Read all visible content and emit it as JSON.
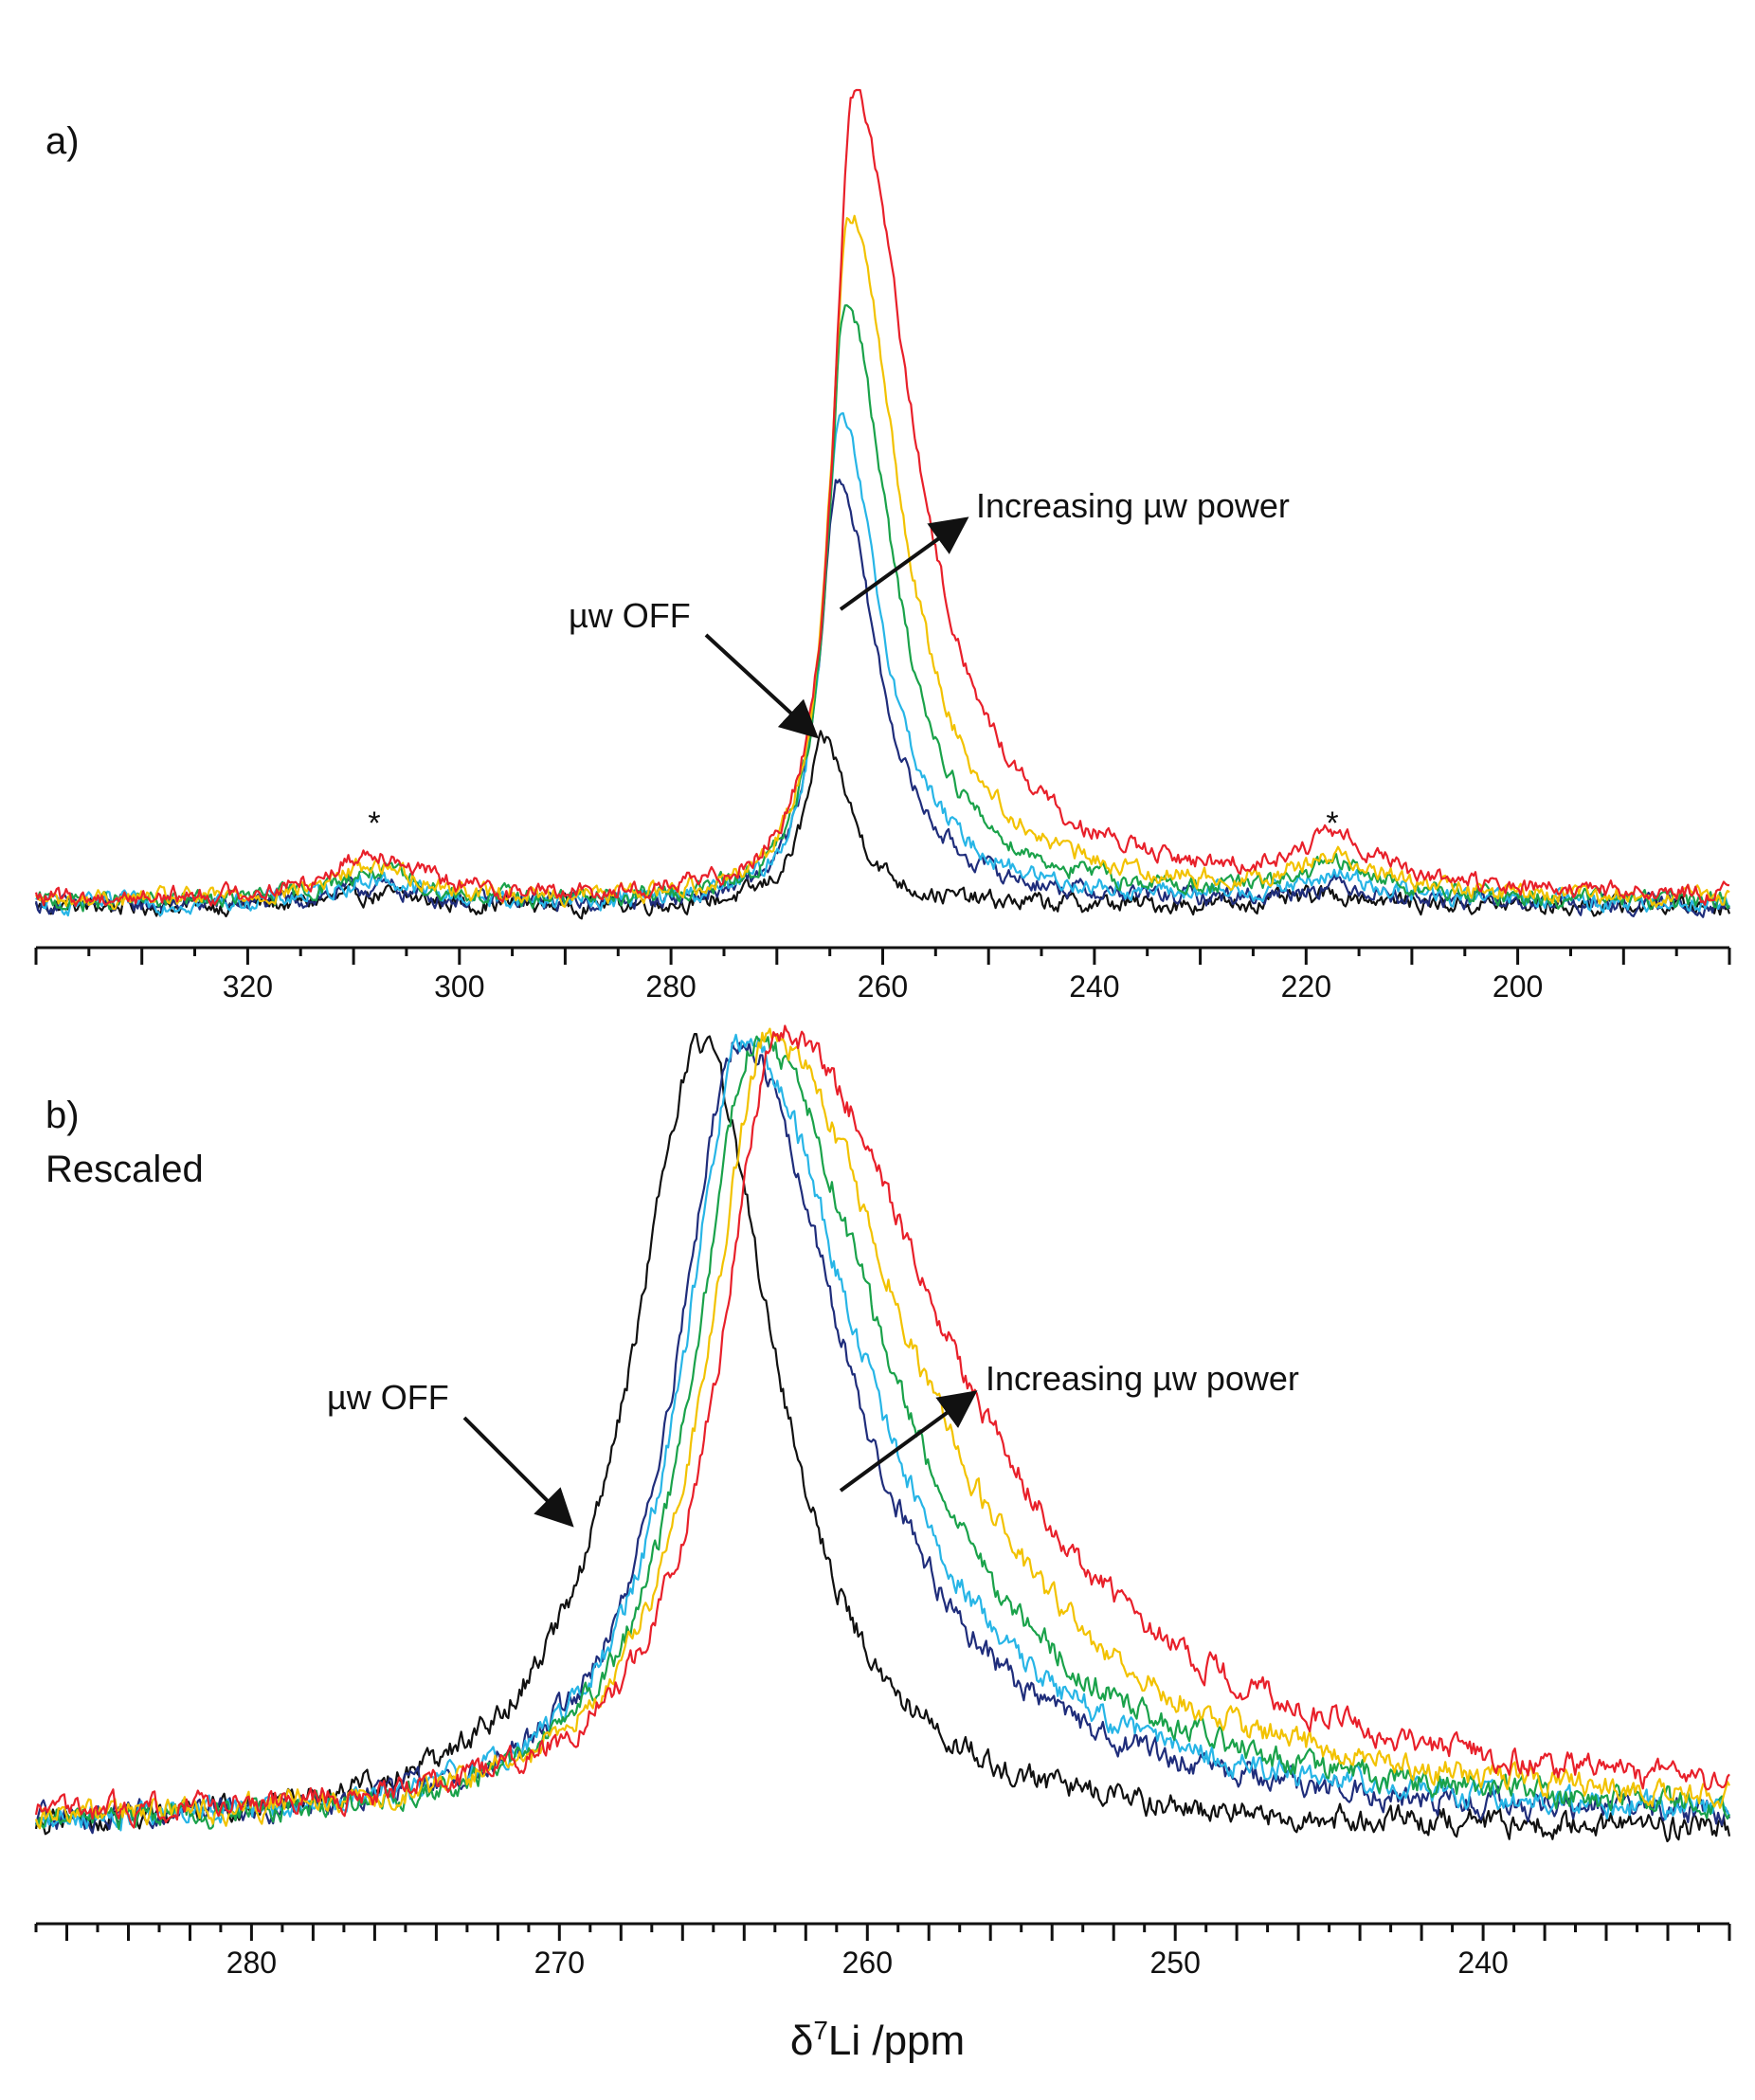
{
  "figure": {
    "xlabel_symbol": "δ",
    "xlabel_superscript": "7",
    "xlabel_rest": "Li /ppm"
  },
  "colors": {
    "axis": "#111111",
    "series": [
      "#111111",
      "#1f2d7b",
      "#27b5e6",
      "#1aa24a",
      "#f2c200",
      "#e8202a"
    ]
  },
  "chart_data": [
    {
      "type": "line",
      "panel_label": "a)",
      "xlabel": "",
      "ylabel": "",
      "xlim": [
        340,
        180
      ],
      "reversed_x": true,
      "ylim": [
        -0.05,
        1.05
      ],
      "x_ticks": [
        320,
        300,
        280,
        260,
        240,
        220,
        200
      ],
      "x_tick_labels": [
        "320",
        "300",
        "280",
        "260",
        "240",
        "220",
        "200"
      ],
      "minor_tick_step": 5,
      "grid": false,
      "annotations": [
        {
          "id": "off",
          "text": "µw OFF"
        },
        {
          "id": "inc",
          "text": "Increasing µw power"
        }
      ],
      "spinning_sideband_markers": [
        "*",
        "*"
      ],
      "spinning_sideband_positions_ppm": [
        308,
        217
      ],
      "series": [
        {
          "center": 265.5,
          "height": 0.205,
          "gamma_left": 2.2,
          "gamma_right": 3.0,
          "sb_height": 0.014,
          "base": 0.004
        },
        {
          "center": 264.2,
          "height": 0.53,
          "gamma_left": 2.1,
          "gamma_right": 4.4,
          "sb_height": 0.022,
          "base": 0.005
        },
        {
          "center": 264.0,
          "height": 0.6,
          "gamma_left": 2.1,
          "gamma_right": 4.7,
          "sb_height": 0.03,
          "base": 0.006
        },
        {
          "center": 263.5,
          "height": 0.745,
          "gamma_left": 2.1,
          "gamma_right": 5.2,
          "sb_height": 0.038,
          "base": 0.008
        },
        {
          "center": 263.2,
          "height": 0.855,
          "gamma_left": 2.2,
          "gamma_right": 5.8,
          "sb_height": 0.044,
          "base": 0.01
        },
        {
          "center": 262.8,
          "height": 1.0,
          "gamma_left": 2.2,
          "gamma_right": 6.8,
          "sb_height": 0.058,
          "base": 0.012
        }
      ]
    },
    {
      "type": "line",
      "panel_label": "b)",
      "panel_sublabel": "Rescaled",
      "xlabel": "δ7Li /ppm",
      "ylabel": "",
      "xlim": [
        287,
        232
      ],
      "reversed_x": true,
      "ylim": [
        -0.06,
        1.04
      ],
      "x_ticks": [
        280,
        270,
        260,
        250,
        240
      ],
      "x_tick_labels": [
        "280",
        "270",
        "260",
        "250",
        "240"
      ],
      "minor_tick_step": 1,
      "grid": false,
      "annotations": [
        {
          "id": "off",
          "text": "µw OFF"
        },
        {
          "id": "inc",
          "text": "Increasing µw power"
        }
      ],
      "series": [
        {
          "center": 265.4,
          "height": 1.0,
          "gamma_left": 2.8,
          "gamma_right": 3.0,
          "base": 0.0
        },
        {
          "center": 264.2,
          "height": 1.0,
          "gamma_left": 2.4,
          "gamma_right": 4.3,
          "base": 0.01
        },
        {
          "center": 264.0,
          "height": 1.0,
          "gamma_left": 2.4,
          "gamma_right": 4.7,
          "base": 0.01
        },
        {
          "center": 263.6,
          "height": 1.0,
          "gamma_left": 2.4,
          "gamma_right": 5.2,
          "base": 0.01
        },
        {
          "center": 263.2,
          "height": 1.0,
          "gamma_left": 2.4,
          "gamma_right": 5.8,
          "base": 0.015
        },
        {
          "center": 262.8,
          "height": 1.0,
          "gamma_left": 2.4,
          "gamma_right": 6.8,
          "base": 0.02
        }
      ]
    }
  ]
}
